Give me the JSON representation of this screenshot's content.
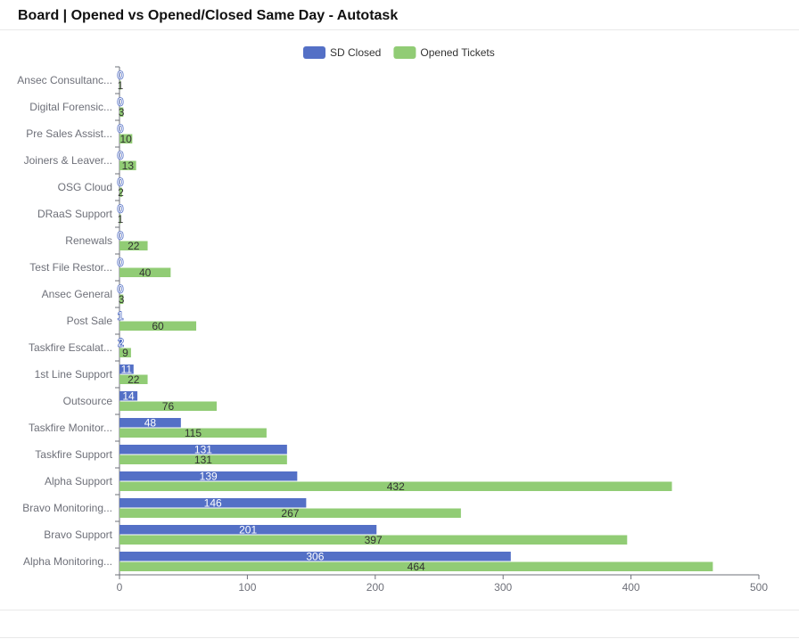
{
  "title": "Board | Opened vs Opened/Closed Same Day - Autotask",
  "chart_data": {
    "type": "bar",
    "orientation": "horizontal",
    "categories": [
      "Ansec Consultanc...",
      "Digital Forensic...",
      "Pre Sales Assist...",
      "Joiners & Leaver...",
      "OSG Cloud",
      "DRaaS Support",
      "Renewals",
      "Test File Restor...",
      "Ansec General",
      "Post Sale",
      "Taskfire Escalat...",
      "1st Line Support",
      "Outsource",
      "Taskfire Monitor...",
      "Taskfire Support",
      "Alpha Support",
      "Bravo Monitoring...",
      "Bravo Support",
      "Alpha Monitoring..."
    ],
    "series": [
      {
        "name": "SD Closed",
        "color": "#5470c6",
        "values": [
          0,
          0,
          0,
          0,
          0,
          0,
          0,
          0,
          0,
          1,
          2,
          11,
          14,
          48,
          131,
          139,
          146,
          201,
          306
        ]
      },
      {
        "name": "Opened Tickets",
        "color": "#91cc75",
        "values": [
          1,
          3,
          10,
          13,
          2,
          1,
          22,
          40,
          3,
          60,
          9,
          22,
          76,
          115,
          131,
          432,
          267,
          397,
          464
        ]
      }
    ],
    "xlim": [
      0,
      500
    ],
    "xticks": [
      "0",
      "100",
      "200",
      "300",
      "400",
      "500"
    ],
    "legend": "top-center",
    "grid": false
  }
}
